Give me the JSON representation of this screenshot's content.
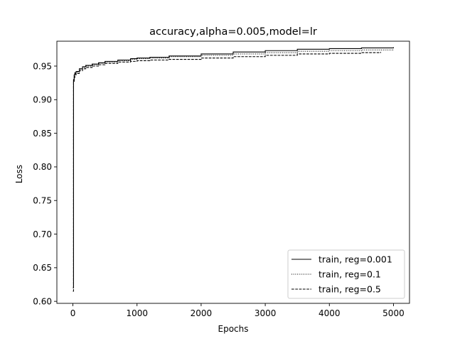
{
  "chart_data": {
    "type": "line",
    "title": "accuracy,alpha=0.005,model=lr",
    "xlabel": "Epochs",
    "ylabel": "Loss",
    "xlim": [
      -250,
      5250
    ],
    "ylim": [
      0.597,
      0.987
    ],
    "xticks": [
      0,
      1000,
      2000,
      3000,
      4000,
      5000
    ],
    "yticks": [
      0.6,
      0.65,
      0.7,
      0.75,
      0.8,
      0.85,
      0.9,
      0.95
    ],
    "grid": false,
    "legend_position": "lower-right",
    "series": [
      {
        "name": "train, reg=0.001",
        "style": "solid",
        "color": "#000000",
        "x": [
          0,
          10,
          20,
          30,
          50,
          100,
          150,
          200,
          300,
          400,
          500,
          700,
          900,
          1000,
          1200,
          1500,
          2000,
          2500,
          3000,
          3500,
          4000,
          4500,
          5000
        ],
        "y": [
          0.62,
          0.93,
          0.937,
          0.94,
          0.942,
          0.946,
          0.949,
          0.951,
          0.953,
          0.955,
          0.957,
          0.959,
          0.961,
          0.962,
          0.963,
          0.965,
          0.968,
          0.971,
          0.973,
          0.975,
          0.976,
          0.977,
          0.978
        ]
      },
      {
        "name": "train, reg=0.1",
        "style": "dotted",
        "color": "#000000",
        "x": [
          0,
          10,
          20,
          30,
          50,
          100,
          150,
          200,
          300,
          400,
          500,
          700,
          900,
          1000,
          1200,
          1500,
          2000,
          2500,
          3000,
          3500,
          4000,
          4500,
          5000
        ],
        "y": [
          0.62,
          0.928,
          0.935,
          0.939,
          0.941,
          0.945,
          0.948,
          0.95,
          0.952,
          0.954,
          0.956,
          0.958,
          0.96,
          0.961,
          0.962,
          0.964,
          0.966,
          0.968,
          0.97,
          0.972,
          0.973,
          0.974,
          0.975
        ]
      },
      {
        "name": "train, reg=0.5",
        "style": "dashed",
        "color": "#000000",
        "x": [
          0,
          10,
          20,
          30,
          50,
          100,
          150,
          200,
          300,
          400,
          500,
          700,
          900,
          1000,
          1200,
          1500,
          2000,
          2500,
          3000,
          3500,
          4000,
          4500,
          4800
        ],
        "y": [
          0.615,
          0.926,
          0.933,
          0.937,
          0.939,
          0.943,
          0.946,
          0.948,
          0.95,
          0.952,
          0.954,
          0.956,
          0.957,
          0.958,
          0.959,
          0.96,
          0.962,
          0.964,
          0.966,
          0.968,
          0.969,
          0.97,
          0.971
        ]
      }
    ]
  }
}
